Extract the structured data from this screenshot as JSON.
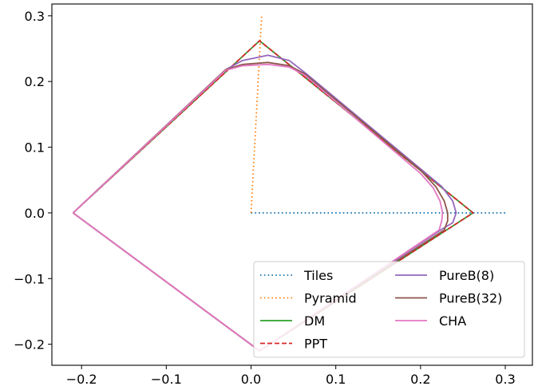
{
  "chart_data": {
    "type": "line",
    "title": "",
    "xlabel": "",
    "ylabel": "",
    "xlim": [
      -0.235,
      0.332
    ],
    "ylim": [
      -0.232,
      0.318
    ],
    "xticks": [
      -0.2,
      -0.1,
      0.0,
      0.1,
      0.2,
      0.3
    ],
    "xtick_labels": [
      "−0.2",
      "−0.1",
      "0.0",
      "0.1",
      "0.2",
      "0.3"
    ],
    "yticks": [
      -0.2,
      -0.1,
      0.0,
      0.1,
      0.2,
      0.3
    ],
    "ytick_labels": [
      "−0.2",
      "−0.1",
      "0.0",
      "0.1",
      "0.2",
      "0.3"
    ],
    "grid": false,
    "legend": {
      "placement": "lower-right",
      "columns": 2
    },
    "series": [
      {
        "name": "Tiles",
        "color": "#1f77b4",
        "dash": "dotted",
        "points": [
          [
            0.0,
            0.0
          ],
          [
            0.3,
            0.0
          ]
        ]
      },
      {
        "name": "Pyramid",
        "color": "#ff7f0e",
        "dash": "dotted",
        "points": [
          [
            0.0,
            0.0
          ],
          [
            0.0125,
            0.3
          ]
        ]
      },
      {
        "name": "DM",
        "color": "#2ca02c",
        "dash": "solid",
        "points": [
          [
            -0.21,
            0.0
          ],
          [
            0.01,
            0.262
          ],
          [
            0.262,
            0.0
          ],
          [
            0.01,
            -0.21
          ],
          [
            -0.21,
            0.0
          ]
        ]
      },
      {
        "name": "PPT",
        "color": "#d62728",
        "dash": "dashed",
        "points": [
          [
            -0.21,
            0.0
          ],
          [
            0.01,
            0.262
          ],
          [
            0.262,
            0.0
          ],
          [
            0.01,
            -0.21
          ],
          [
            -0.21,
            0.0
          ]
        ]
      },
      {
        "name": "PureB(8)",
        "color": "#9467bd",
        "dash": "solid",
        "points": [
          [
            -0.21,
            0.0
          ],
          [
            -0.03,
            0.218
          ],
          [
            -0.01,
            0.232
          ],
          [
            0.02,
            0.24
          ],
          [
            0.045,
            0.232
          ],
          [
            0.065,
            0.212
          ],
          [
            0.2,
            0.067
          ],
          [
            0.225,
            0.04
          ],
          [
            0.238,
            0.018
          ],
          [
            0.242,
            0.0
          ],
          [
            0.238,
            -0.015
          ],
          [
            0.225,
            -0.025
          ],
          [
            0.01,
            -0.21
          ],
          [
            -0.21,
            0.0
          ]
        ]
      },
      {
        "name": "PureB(32)",
        "color": "#8c564b",
        "dash": "solid",
        "points": [
          [
            -0.21,
            0.0
          ],
          [
            -0.03,
            0.218
          ],
          [
            -0.01,
            0.226
          ],
          [
            0.02,
            0.229
          ],
          [
            0.045,
            0.224
          ],
          [
            0.063,
            0.212
          ],
          [
            0.2,
            0.065
          ],
          [
            0.218,
            0.04
          ],
          [
            0.228,
            0.018
          ],
          [
            0.232,
            0.0
          ],
          [
            0.232,
            -0.012
          ],
          [
            0.228,
            -0.026
          ],
          [
            0.01,
            -0.21
          ],
          [
            -0.21,
            0.0
          ]
        ]
      },
      {
        "name": "CHA",
        "color": "#e377c2",
        "dash": "solid",
        "points": [
          [
            -0.21,
            0.0
          ],
          [
            -0.03,
            0.217
          ],
          [
            -0.01,
            0.224
          ],
          [
            0.02,
            0.226
          ],
          [
            0.045,
            0.222
          ],
          [
            0.063,
            0.21
          ],
          [
            0.2,
            0.06
          ],
          [
            0.215,
            0.038
          ],
          [
            0.223,
            0.018
          ],
          [
            0.226,
            0.0
          ],
          [
            0.225,
            -0.012
          ],
          [
            0.222,
            -0.026
          ],
          [
            0.01,
            -0.21
          ],
          [
            -0.21,
            0.0
          ]
        ]
      }
    ]
  }
}
